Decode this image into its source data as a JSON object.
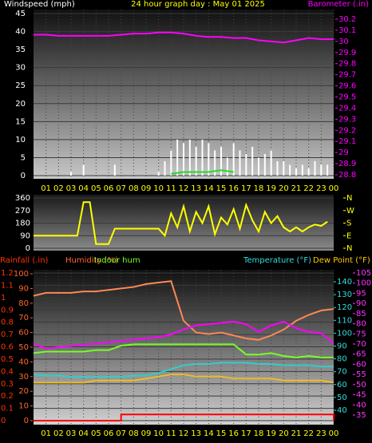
{
  "chart_data": [
    {
      "type": "combo",
      "title": "24 hour graph day : May 01 2025",
      "title_color": "#ffff00",
      "y_label": "Windspeed (mph)",
      "ycolor": "#ffffff",
      "y2_label": "Barometer (.in)",
      "y2color": "#ff00ff",
      "xlim": [
        0,
        24
      ],
      "xticks": [
        {
          "value": 1,
          "label": "01"
        },
        {
          "value": 2,
          "label": "02"
        },
        {
          "value": 3,
          "label": "03"
        },
        {
          "value": 4,
          "label": "04"
        },
        {
          "value": 5,
          "label": "05"
        },
        {
          "value": 6,
          "label": "06"
        },
        {
          "value": 7,
          "label": "07"
        },
        {
          "value": 8,
          "label": "08"
        },
        {
          "value": 9,
          "label": "09"
        },
        {
          "value": 10,
          "label": "10"
        },
        {
          "value": 11,
          "label": "11"
        },
        {
          "value": 12,
          "label": "12"
        },
        {
          "value": 13,
          "label": "13"
        },
        {
          "value": 14,
          "label": "14"
        },
        {
          "value": 15,
          "label": "15"
        },
        {
          "value": 16,
          "label": "16"
        },
        {
          "value": 17,
          "label": "17"
        },
        {
          "value": 18,
          "label": "18"
        },
        {
          "value": 19,
          "label": "19"
        },
        {
          "value": 20,
          "label": "20"
        },
        {
          "value": 21,
          "label": "21"
        },
        {
          "value": 22,
          "label": "22"
        },
        {
          "value": 23,
          "label": "23"
        },
        {
          "value": 24,
          "label": "00"
        }
      ],
      "xtick_color": "#ffff00",
      "ylim": [
        0,
        45
      ],
      "yticks": [
        0,
        5,
        10,
        15,
        20,
        25,
        30,
        35,
        40,
        45
      ],
      "y2lim": [
        28.8,
        30.2
      ],
      "y2ticks": [
        28.8,
        28.9,
        29,
        29.1,
        29.2,
        29.3,
        29.4,
        29.5,
        29.6,
        29.7,
        29.8,
        29.9,
        30,
        30.1,
        30.2
      ],
      "series": [
        {
          "type": "bar",
          "color": "#ffffff",
          "axis": "y",
          "x": [
            0,
            0.5,
            1,
            1.5,
            2,
            2.5,
            3,
            3.5,
            4,
            4.5,
            5,
            5.5,
            6,
            6.5,
            7,
            7.5,
            8,
            8.5,
            9,
            9.5,
            10,
            10.5,
            11,
            11.5,
            12,
            12.5,
            13,
            13.5,
            14,
            14.5,
            15,
            15.5,
            16,
            16.5,
            17,
            17.5,
            18,
            18.5,
            19,
            19.5,
            20,
            20.5,
            21,
            21.5,
            22,
            22.5,
            23,
            23.5
          ],
          "values": [
            0,
            0,
            0,
            0,
            0,
            0,
            1,
            0,
            3,
            0,
            0,
            0,
            0,
            3,
            0,
            0,
            0,
            0,
            0,
            0,
            1,
            4,
            7,
            10,
            9,
            10,
            8,
            10,
            9,
            7,
            8,
            5,
            9,
            7,
            6,
            8,
            5,
            6,
            7,
            4,
            4,
            3,
            2,
            3,
            2,
            4,
            3,
            3
          ]
        },
        {
          "type": "line",
          "color": "#22dd22",
          "axis": "y",
          "x": [
            11,
            12,
            13,
            14,
            15,
            16
          ],
          "values": [
            0.5,
            1,
            1,
            1,
            1.5,
            1
          ]
        },
        {
          "type": "line",
          "color": "#ff00ff",
          "axis": "y2",
          "x": [
            0,
            1,
            2,
            3,
            4,
            5,
            6,
            7,
            8,
            9,
            10,
            11,
            12,
            13,
            14,
            15,
            16,
            17,
            18,
            19,
            20,
            21,
            22,
            23,
            24
          ],
          "values": [
            30.06,
            30.06,
            30.05,
            30.05,
            30.05,
            30.05,
            30.05,
            30.06,
            30.07,
            30.07,
            30.08,
            30.08,
            30.07,
            30.05,
            30.04,
            30.04,
            30.03,
            30.03,
            30.01,
            30.0,
            29.99,
            30.01,
            30.03,
            30.02,
            30.02
          ]
        }
      ]
    },
    {
      "type": "combo",
      "xlim": [
        0,
        24
      ],
      "ylim": [
        0,
        360
      ],
      "yticks": [
        0,
        90,
        180,
        270,
        360
      ],
      "ycolor": "#ffffff",
      "y2lim": [
        0,
        360
      ],
      "y2color": "#ffff00",
      "y2ticks": [
        {
          "value": 360,
          "label": "N"
        },
        {
          "value": 270,
          "label": "W"
        },
        {
          "value": 180,
          "label": "S"
        },
        {
          "value": 90,
          "label": "E"
        },
        {
          "value": 0,
          "label": "N"
        }
      ],
      "series": [
        {
          "type": "line",
          "color": "#ffff00",
          "axis": "y",
          "x": [
            0,
            0.5,
            1,
            1.5,
            2,
            2.5,
            3,
            3.5,
            4,
            4.5,
            5,
            5.5,
            6,
            6.5,
            7,
            7.5,
            8,
            8.5,
            9,
            9.5,
            10,
            10.5,
            11,
            11.5,
            12,
            12.5,
            13,
            13.5,
            14,
            14.5,
            15,
            15.5,
            16,
            16.5,
            17,
            17.5,
            18,
            18.5,
            19,
            19.5,
            20,
            20.5,
            21,
            21.5,
            22,
            22.5,
            23,
            23.5
          ],
          "values": [
            90,
            90,
            90,
            90,
            90,
            90,
            90,
            90,
            330,
            330,
            30,
            30,
            30,
            140,
            140,
            140,
            140,
            140,
            140,
            140,
            140,
            90,
            250,
            150,
            300,
            120,
            260,
            180,
            300,
            100,
            220,
            170,
            280,
            140,
            310,
            200,
            120,
            260,
            180,
            230,
            150,
            120,
            150,
            120,
            150,
            170,
            160,
            190
          ]
        }
      ]
    },
    {
      "type": "combo",
      "xlim": [
        0,
        24
      ],
      "xticks": [
        {
          "value": 1,
          "label": "01"
        },
        {
          "value": 2,
          "label": "02"
        },
        {
          "value": 3,
          "label": "03"
        },
        {
          "value": 4,
          "label": "04"
        },
        {
          "value": 5,
          "label": "05"
        },
        {
          "value": 6,
          "label": "06"
        },
        {
          "value": 7,
          "label": "07"
        },
        {
          "value": 8,
          "label": "08"
        },
        {
          "value": 9,
          "label": "09"
        },
        {
          "value": 10,
          "label": "10"
        },
        {
          "value": 11,
          "label": "11"
        },
        {
          "value": 12,
          "label": "12"
        },
        {
          "value": 13,
          "label": "13"
        },
        {
          "value": 14,
          "label": "14"
        },
        {
          "value": 15,
          "label": "15"
        },
        {
          "value": 16,
          "label": "16"
        },
        {
          "value": 17,
          "label": "17"
        },
        {
          "value": 18,
          "label": "18"
        },
        {
          "value": 19,
          "label": "19"
        },
        {
          "value": 20,
          "label": "20"
        },
        {
          "value": 21,
          "label": "21"
        },
        {
          "value": 22,
          "label": "22"
        },
        {
          "value": 23,
          "label": "23"
        },
        {
          "value": 24,
          "label": "00"
        }
      ],
      "xtick_color": "#ffff00",
      "y_label": "Rainfall (.in)",
      "ycolor": "#ff3300",
      "ylim": [
        0,
        1.2
      ],
      "yticks": [
        0,
        0.1,
        0.2,
        0.3,
        0.4,
        0.5,
        0.6,
        0.7,
        0.8,
        0.9,
        1,
        1.1,
        1.2
      ],
      "y2_label": "Humidity (%)",
      "y2color": "#ff6633",
      "y2lim": [
        0,
        100
      ],
      "y2ticks": [
        0,
        10,
        20,
        30,
        40,
        50,
        60,
        70,
        80,
        90,
        100
      ],
      "y3_label": "Temperature (°F)",
      "y3color": "#33dddd",
      "y3lim": [
        40,
        140
      ],
      "y3ticks": [
        40,
        50,
        60,
        70,
        80,
        90,
        100,
        110,
        120,
        130,
        140
      ],
      "y4_label": "Dew Point (°F)",
      "y4color": "#ff33ff",
      "y4_label_color": "#ffcc00",
      "y4lim": [
        35,
        105
      ],
      "y4ticks": [
        35,
        40,
        45,
        50,
        55,
        60,
        65,
        70,
        75,
        80,
        85,
        90,
        95,
        100,
        105
      ],
      "x": [
        0,
        1,
        2,
        3,
        4,
        5,
        6,
        7,
        8,
        9,
        10,
        11,
        12,
        13,
        14,
        15,
        16,
        17,
        18,
        19,
        20,
        21,
        22,
        23,
        24
      ],
      "series": [
        {
          "type": "line",
          "color": "#ff8855",
          "axis": "y2",
          "values": [
            85,
            87,
            87,
            87,
            88,
            88,
            89,
            90,
            91,
            93,
            94,
            95,
            68,
            60,
            59,
            60,
            58,
            56,
            55,
            58,
            62,
            68,
            72,
            75,
            76
          ]
        },
        {
          "name": "Indoor hum",
          "type": "line",
          "color": "#77ff22",
          "axis": "y2",
          "values": [
            46,
            47,
            47,
            47,
            47,
            48,
            48,
            51,
            52,
            52,
            52,
            52,
            52,
            52,
            52,
            52,
            52,
            45,
            45,
            46,
            44,
            43,
            44,
            43,
            43
          ]
        },
        {
          "type": "line",
          "color": "#ff00ff",
          "axis": "y3",
          "values": [
            92,
            88,
            89,
            90,
            91,
            92,
            93,
            94,
            95,
            96,
            97,
            99,
            103,
            106,
            107,
            108,
            109,
            107,
            101,
            106,
            109,
            104,
            101,
            100,
            92
          ]
        },
        {
          "type": "line",
          "color": "#33cccc",
          "axis": "y3",
          "values": [
            68,
            67,
            67,
            66,
            66,
            66,
            66,
            66,
            67,
            67,
            69,
            72,
            75,
            76,
            76,
            77,
            77,
            77,
            76,
            76,
            75,
            75,
            75,
            74,
            74
          ]
        },
        {
          "type": "line",
          "color": "#eebb22",
          "axis": "y4",
          "values": [
            51,
            51,
            51,
            51,
            51,
            52,
            52,
            52,
            52,
            53,
            54,
            55,
            55,
            54,
            54,
            54,
            53,
            53,
            53,
            53,
            52,
            52,
            52,
            52,
            51
          ]
        },
        {
          "type": "step",
          "color": "#ff0000",
          "axis": "y",
          "values": [
            0,
            0,
            0,
            0,
            0,
            0,
            0,
            0.05,
            0.05,
            0.05,
            0.05,
            0.05,
            0.05,
            0.05,
            0.05,
            0.05,
            0.05,
            0.05,
            0.05,
            0.05,
            0.05,
            0.05,
            0.05,
            0.05,
            0
          ]
        }
      ]
    }
  ]
}
